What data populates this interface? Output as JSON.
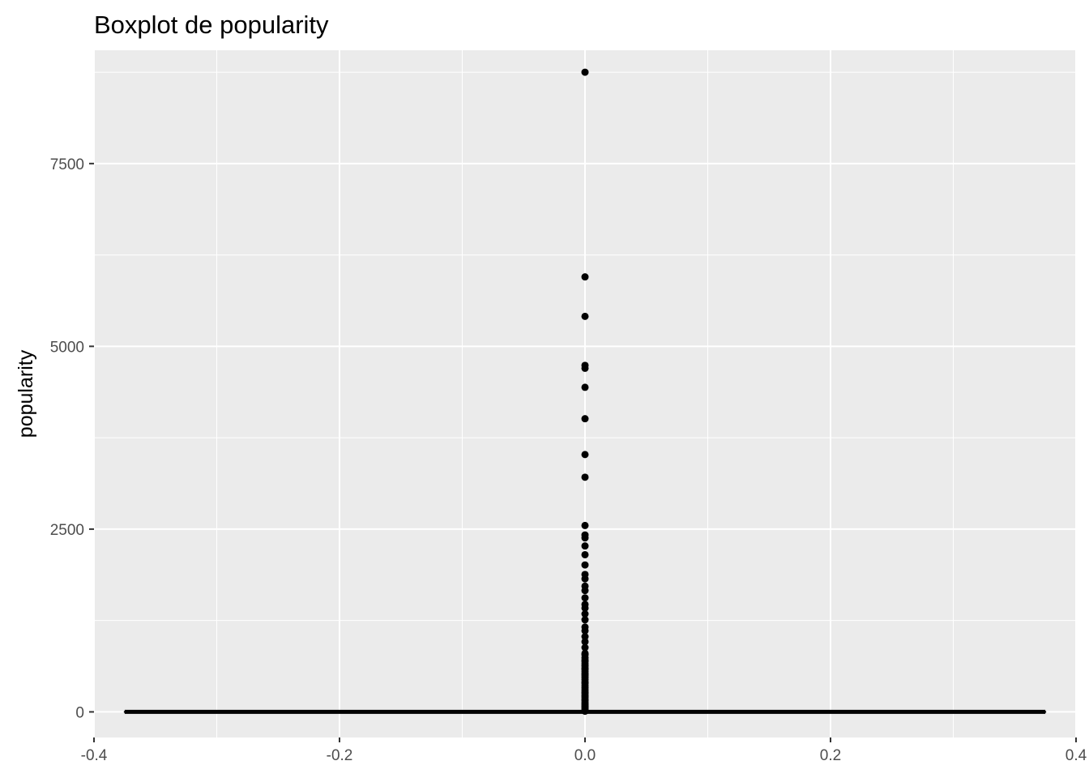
{
  "chart_data": {
    "type": "boxplot",
    "title": "Boxplot de popularity",
    "xlabel": "",
    "ylabel": "popularity",
    "xlim": [
      -0.4,
      0.4
    ],
    "ylim": [
      -350,
      9050
    ],
    "x_ticks": [
      -0.4,
      -0.2,
      0.0,
      0.2,
      0.4
    ],
    "x_tick_labels": [
      "-0.4",
      "-0.2",
      "0.0",
      "0.2",
      "0.4"
    ],
    "y_ticks": [
      0,
      2500,
      5000,
      7500
    ],
    "y_tick_labels": [
      "0",
      "2500",
      "5000",
      "7500"
    ],
    "grid": true,
    "background": "#EBEBEB",
    "grid_color": "#FFFFFF",
    "box": {
      "x": 0.0,
      "width": 0.75,
      "lower_whisker": 0,
      "q1": 0,
      "median": 0,
      "q3": 0,
      "upper_whisker": 0
    },
    "outliers": [
      8750,
      5950,
      5410,
      4740,
      4700,
      4440,
      4010,
      3520,
      3210,
      2550,
      2420,
      2380,
      2270,
      2150,
      2010,
      1880,
      1820,
      1720,
      1660,
      1560,
      1470,
      1420,
      1340,
      1260,
      1160,
      1110,
      1030,
      960,
      880,
      800,
      780,
      740,
      710,
      690,
      660,
      630,
      600,
      580,
      550,
      520,
      500,
      470,
      440,
      410,
      390,
      360,
      330,
      300,
      270,
      250,
      220,
      200,
      170,
      150,
      120,
      100,
      80,
      60,
      40,
      20,
      10
    ]
  }
}
